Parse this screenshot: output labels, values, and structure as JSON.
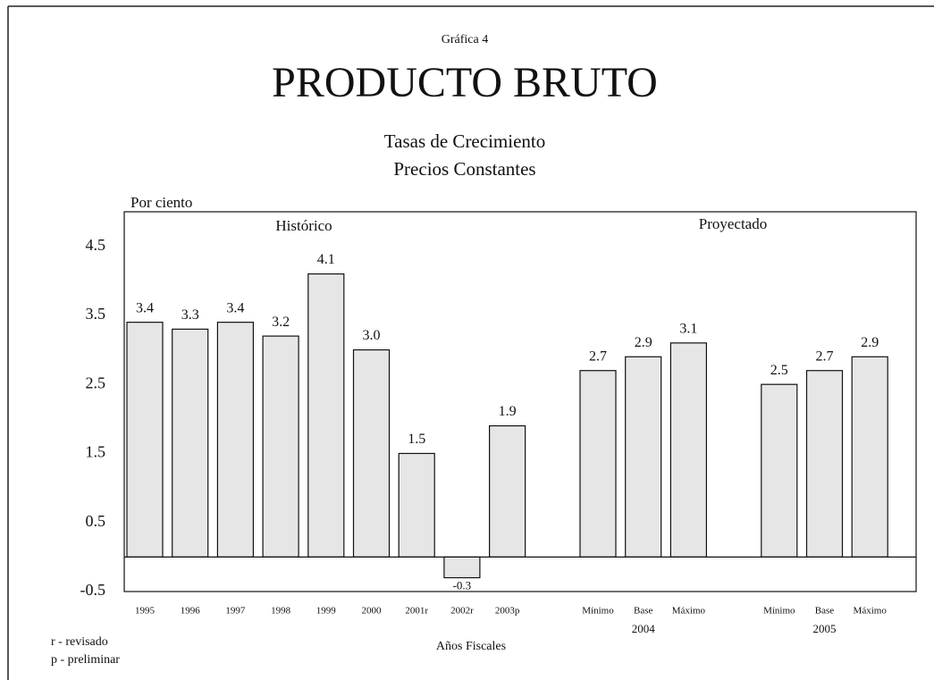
{
  "chart_data": {
    "type": "bar",
    "label": "Gráfica 4",
    "title": "PRODUCTO BRUTO",
    "subtitle": [
      "Tasas de Crecimiento",
      "Precios Constantes"
    ],
    "y_label": "Por ciento",
    "x_label": "Años Fiscales",
    "section_labels": [
      "Histórico",
      "Proyectado"
    ],
    "group_labels": [
      "2004",
      "2005"
    ],
    "notes": [
      "r - revisado",
      "p - preliminar"
    ],
    "categories": [
      "1995",
      "1996",
      "1997",
      "1998",
      "1999",
      "2000",
      "2001r",
      "2002r",
      "2003p",
      null,
      "Mínimo",
      "Base",
      "Máximo",
      null,
      "Mínimo",
      "Base",
      "Máximo"
    ],
    "values": [
      3.4,
      3.3,
      3.4,
      3.2,
      4.1,
      3.0,
      1.5,
      -0.3,
      1.9,
      null,
      2.7,
      2.9,
      3.1,
      null,
      2.5,
      2.7,
      2.9
    ],
    "value_labels": [
      "3.4",
      "3.3",
      "3.4",
      "3.2",
      "4.1",
      "3.0",
      "1.5",
      "-0.3",
      "1.9",
      null,
      "2.7",
      "2.9",
      "3.1",
      null,
      "2.5",
      "2.7",
      "2.9"
    ],
    "color": "#e6e6e6",
    "ylim": [
      -0.5,
      5.0
    ],
    "yticks": [
      4.5,
      3.5,
      2.5,
      1.5,
      0.5,
      -0.5
    ]
  }
}
